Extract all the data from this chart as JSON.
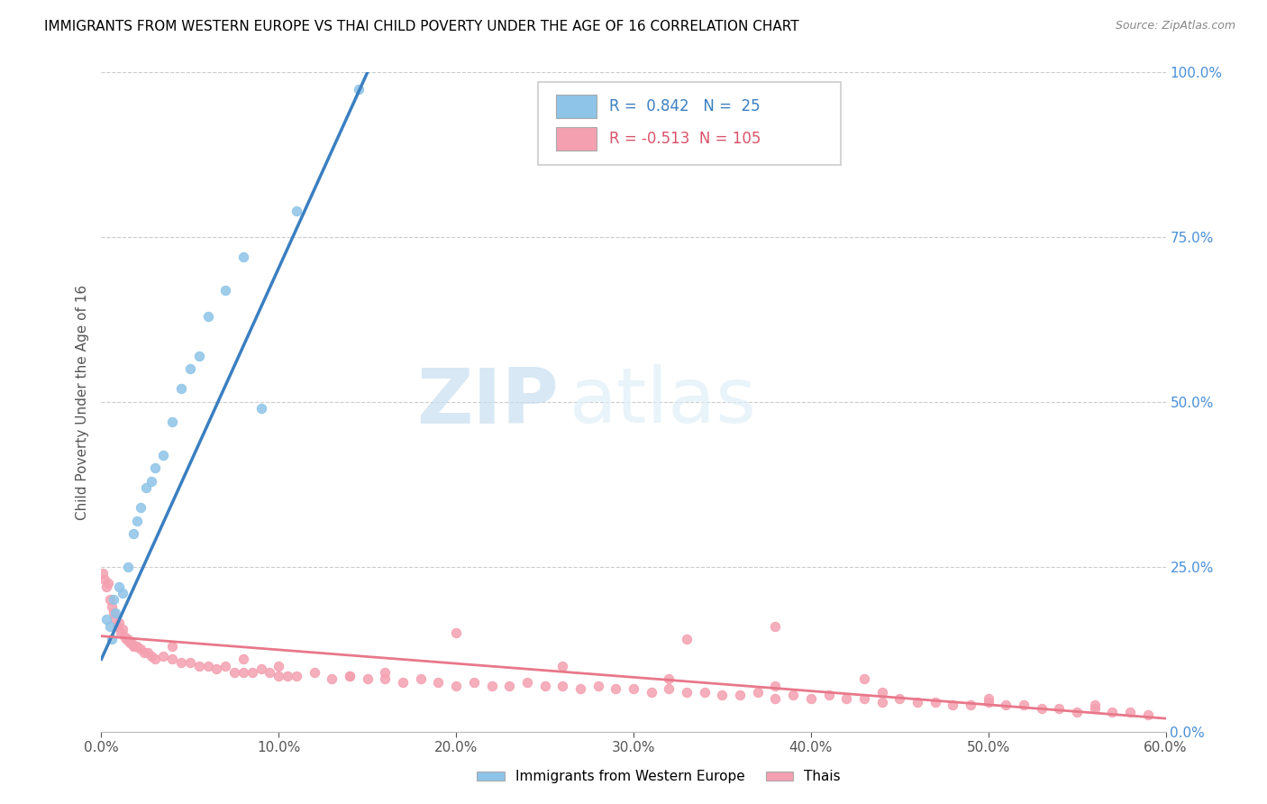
{
  "title": "IMMIGRANTS FROM WESTERN EUROPE VS THAI CHILD POVERTY UNDER THE AGE OF 16 CORRELATION CHART",
  "source": "Source: ZipAtlas.com",
  "ylabel": "Child Poverty Under the Age of 16",
  "x_tick_labels": [
    "0.0%",
    "10.0%",
    "20.0%",
    "30.0%",
    "40.0%",
    "50.0%",
    "60.0%"
  ],
  "x_tick_values": [
    0.0,
    10.0,
    20.0,
    30.0,
    40.0,
    50.0,
    60.0
  ],
  "y_tick_labels_right": [
    "0.0%",
    "25.0%",
    "50.0%",
    "75.0%",
    "100.0%"
  ],
  "y_tick_values_right": [
    0.0,
    25.0,
    50.0,
    75.0,
    100.0
  ],
  "xlim": [
    0.0,
    60.0
  ],
  "ylim": [
    0.0,
    100.0
  ],
  "blue_color": "#8ec4e8",
  "blue_line_color": "#3a7fc1",
  "pink_color": "#f4a0b0",
  "pink_line_color": "#e8788a",
  "legend_blue_label": "Immigrants from Western Europe",
  "legend_pink_label": "Thais",
  "R_blue": 0.842,
  "N_blue": 25,
  "R_pink": -0.513,
  "N_pink": 105,
  "watermark_zip": "ZIP",
  "watermark_atlas": "atlas",
  "blue_line_x0": 0.0,
  "blue_line_y0": 11.0,
  "blue_line_x1": 15.0,
  "blue_line_y1": 100.0,
  "pink_line_x0": 0.0,
  "pink_line_y0": 14.5,
  "pink_line_x1": 60.0,
  "pink_line_y1": 2.0,
  "blue_x": [
    0.3,
    0.5,
    0.6,
    0.7,
    0.8,
    1.0,
    1.2,
    1.5,
    1.8,
    2.0,
    2.2,
    2.5,
    2.8,
    3.0,
    3.5,
    4.0,
    4.5,
    5.0,
    5.5,
    6.0,
    7.0,
    8.0,
    9.0,
    11.0,
    14.5
  ],
  "blue_y": [
    17.0,
    16.0,
    14.0,
    20.0,
    18.0,
    22.0,
    21.0,
    25.0,
    30.0,
    32.0,
    34.0,
    37.0,
    38.0,
    40.0,
    42.0,
    47.0,
    52.0,
    55.0,
    57.0,
    63.0,
    67.0,
    72.0,
    49.0,
    79.0,
    97.5
  ],
  "pink_x": [
    0.1,
    0.2,
    0.3,
    0.4,
    0.5,
    0.6,
    0.7,
    0.8,
    0.9,
    1.0,
    1.1,
    1.2,
    1.3,
    1.4,
    1.5,
    1.6,
    1.7,
    1.8,
    1.9,
    2.0,
    2.2,
    2.4,
    2.6,
    2.8,
    3.0,
    3.5,
    4.0,
    4.5,
    5.0,
    5.5,
    6.0,
    6.5,
    7.0,
    7.5,
    8.0,
    8.5,
    9.0,
    9.5,
    10.0,
    10.5,
    11.0,
    12.0,
    13.0,
    14.0,
    15.0,
    16.0,
    17.0,
    18.0,
    19.0,
    20.0,
    21.0,
    22.0,
    23.0,
    24.0,
    25.0,
    26.0,
    27.0,
    28.0,
    29.0,
    30.0,
    31.0,
    32.0,
    33.0,
    34.0,
    35.0,
    36.0,
    37.0,
    38.0,
    39.0,
    40.0,
    41.0,
    42.0,
    43.0,
    44.0,
    45.0,
    46.0,
    47.0,
    48.0,
    49.0,
    50.0,
    51.0,
    52.0,
    53.0,
    54.0,
    55.0,
    56.0,
    57.0,
    58.0,
    59.0,
    33.0,
    38.0,
    43.0,
    8.0,
    14.0,
    20.0,
    26.0,
    32.0,
    38.0,
    44.0,
    50.0,
    56.0,
    4.0,
    10.0,
    16.0
  ],
  "pink_y": [
    24.0,
    23.0,
    22.0,
    22.5,
    20.0,
    19.0,
    18.0,
    17.0,
    16.0,
    16.5,
    15.0,
    15.5,
    14.5,
    14.0,
    14.0,
    13.5,
    13.5,
    13.0,
    13.0,
    13.0,
    12.5,
    12.0,
    12.0,
    11.5,
    11.0,
    11.5,
    11.0,
    10.5,
    10.5,
    10.0,
    10.0,
    9.5,
    10.0,
    9.0,
    9.0,
    9.0,
    9.5,
    9.0,
    8.5,
    8.5,
    8.5,
    9.0,
    8.0,
    8.5,
    8.0,
    8.0,
    7.5,
    8.0,
    7.5,
    7.0,
    7.5,
    7.0,
    7.0,
    7.5,
    7.0,
    7.0,
    6.5,
    7.0,
    6.5,
    6.5,
    6.0,
    6.5,
    6.0,
    6.0,
    5.5,
    5.5,
    6.0,
    5.0,
    5.5,
    5.0,
    5.5,
    5.0,
    5.0,
    4.5,
    5.0,
    4.5,
    4.5,
    4.0,
    4.0,
    4.5,
    4.0,
    4.0,
    3.5,
    3.5,
    3.0,
    3.5,
    3.0,
    3.0,
    2.5,
    14.0,
    16.0,
    8.0,
    11.0,
    8.5,
    15.0,
    10.0,
    8.0,
    7.0,
    6.0,
    5.0,
    4.0,
    13.0,
    10.0,
    9.0
  ]
}
